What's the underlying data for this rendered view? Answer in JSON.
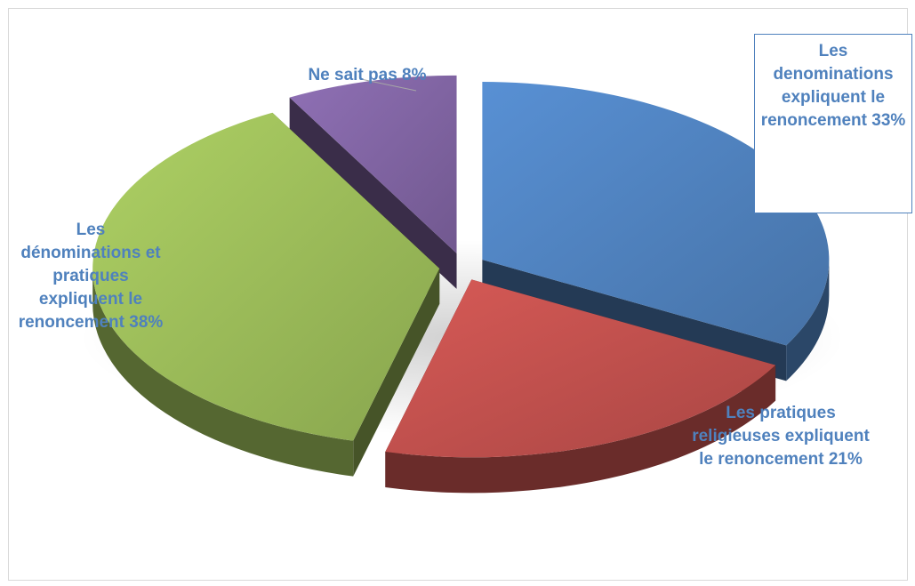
{
  "chart_data": {
    "type": "pie",
    "title": "",
    "style": "3d-exploded",
    "slices": [
      {
        "label": "Les denominations expliquent le renoncement",
        "value": 33,
        "display": "Les denominations expliquent le renoncement 33%",
        "color": "#4f81bd"
      },
      {
        "label": "Les pratiques religieuses expliquent le renoncement",
        "value": 21,
        "display": "Les pratiques religieuses expliquent le renoncement 21%",
        "color": "#c0504d"
      },
      {
        "label": "Les dénominations et pratiques expliquent le renoncement",
        "value": 38,
        "display": "Les dénominations et pratiques expliquent le renoncement 38%",
        "color": "#9bbb59"
      },
      {
        "label": "Ne sait pas",
        "value": 8,
        "display": "Ne sait pas 8%",
        "color": "#8064a2"
      }
    ],
    "label_color": "#4f81bd"
  }
}
